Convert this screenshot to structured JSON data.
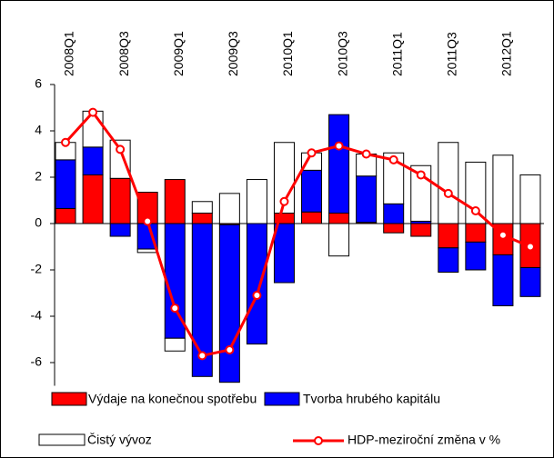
{
  "chart_data": {
    "type": "bar",
    "stacked": true,
    "categories": [
      "2008Q1",
      null,
      "2008Q3",
      null,
      "2009Q1",
      null,
      "2009Q3",
      null,
      "2010Q1",
      null,
      "2010Q3",
      null,
      "2011Q1",
      null,
      "2011Q3",
      null,
      "2012Q1",
      null
    ],
    "series": [
      {
        "name": "Výdaje na konečnou spotřebu",
        "color": "#ff0000",
        "values": [
          0.65,
          2.1,
          1.95,
          1.35,
          1.9,
          0.45,
          -0.05,
          0,
          0.45,
          0.5,
          0.45,
          0.05,
          -0.4,
          -0.55,
          -1.05,
          -0.8,
          -1.35,
          -1.9
        ]
      },
      {
        "name": "Tvorba hrubého kapitálu",
        "color": "#0000ff",
        "values": [
          2.1,
          1.2,
          -0.55,
          -1.1,
          -4.95,
          -6.6,
          -6.8,
          -5.2,
          -2.55,
          1.8,
          4.25,
          2.0,
          0.85,
          0.1,
          -1.05,
          -1.2,
          -2.2,
          -1.25
        ]
      },
      {
        "name": "Čistý vývoz",
        "color": "#ffffff",
        "values": [
          0.75,
          1.55,
          1.65,
          -0.15,
          -0.55,
          0.5,
          1.3,
          1.9,
          3.05,
          0.75,
          -1.4,
          0.95,
          2.2,
          2.4,
          3.5,
          2.65,
          2.95,
          2.1
        ]
      },
      {
        "name": "HDP-meziroční změna v %",
        "color": "#ff0000",
        "type": "line",
        "values": [
          3.5,
          4.8,
          3.2,
          0.1,
          -3.65,
          -5.7,
          -5.45,
          -3.1,
          0.95,
          3.05,
          3.35,
          3.0,
          2.75,
          2.1,
          1.3,
          0.55,
          -0.5,
          -1.0
        ]
      }
    ],
    "ylim": [
      -7,
      6
    ],
    "yticks": [
      -6,
      -4,
      -2,
      0,
      2,
      4,
      6
    ],
    "grid": false
  }
}
